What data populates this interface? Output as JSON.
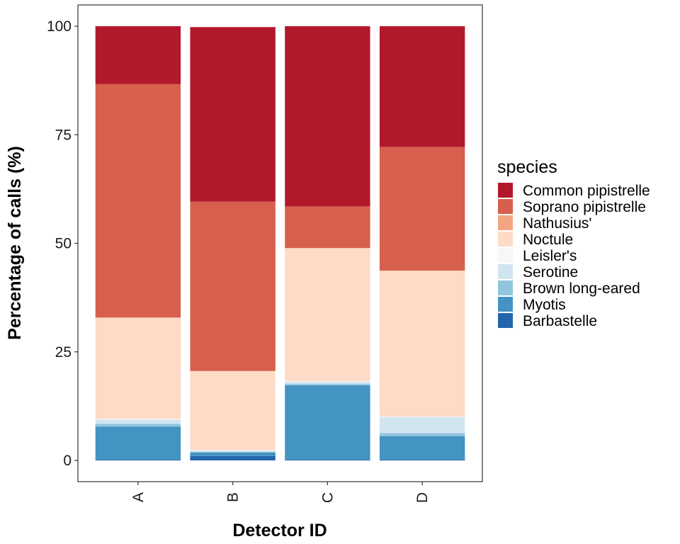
{
  "chart_data": {
    "type": "bar",
    "stacked": true,
    "title": "",
    "xlabel": "Detector ID",
    "ylabel": "Percentage of calls (%)",
    "ylim": [
      0,
      100
    ],
    "yticks": [
      0,
      25,
      50,
      75,
      100
    ],
    "grid": false,
    "legend_placement": "right",
    "legend_title": "species",
    "categories": [
      "A",
      "B",
      "C",
      "D"
    ],
    "series": [
      {
        "name": "Barbastelle",
        "color": "#2166ac",
        "values": [
          0.2,
          1.0,
          0.2,
          0.2
        ]
      },
      {
        "name": "Myotis",
        "color": "#4393c3",
        "values": [
          7.6,
          0.8,
          17.1,
          5.4
        ]
      },
      {
        "name": "Brown long-eared",
        "color": "#92c5de",
        "values": [
          0.6,
          0.2,
          0.3,
          0.7
        ]
      },
      {
        "name": "Serotine",
        "color": "#d1e5f0",
        "values": [
          1.0,
          0.3,
          0.5,
          3.7
        ]
      },
      {
        "name": "Leisler's",
        "color": "#f7f7f7",
        "values": [
          0.2,
          0.1,
          0.2,
          0.1
        ]
      },
      {
        "name": "Noctule",
        "color": "#fddbc7",
        "values": [
          23.3,
          18.2,
          30.6,
          33.6
        ]
      },
      {
        "name": "Nathusius'",
        "color": "#f4a582",
        "values": [
          0.0,
          0.0,
          0.0,
          0.0
        ]
      },
      {
        "name": "Soprano pipistrelle",
        "color": "#d6604d",
        "values": [
          53.8,
          39.0,
          9.6,
          28.5
        ]
      },
      {
        "name": "Common pipistrelle",
        "color": "#b2182b",
        "values": [
          13.3,
          40.2,
          41.5,
          27.8
        ]
      }
    ],
    "legend_order": [
      "Common pipistrelle",
      "Soprano pipistrelle",
      "Nathusius'",
      "Noctule",
      "Leisler's",
      "Serotine",
      "Brown long-eared",
      "Myotis",
      "Barbastelle"
    ]
  }
}
